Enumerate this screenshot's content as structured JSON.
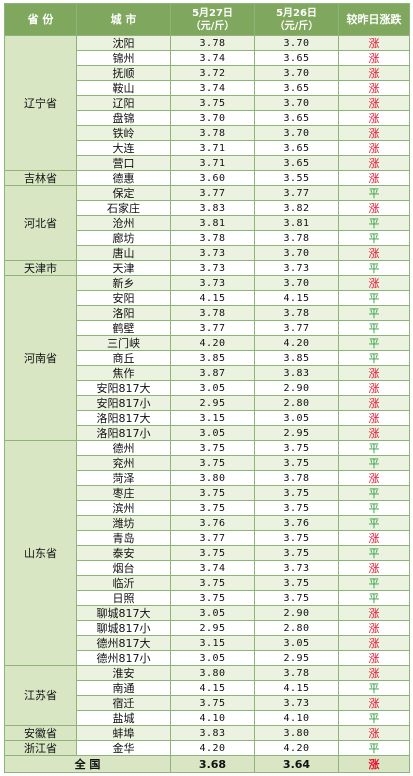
{
  "headers": {
    "province": "省 份",
    "city": "城 市",
    "date1": "5月27日",
    "date1_unit": "（元/斤）",
    "date2": "5月26日",
    "date2_unit": "（元/斤）",
    "trend": "较昨日涨跌"
  },
  "colors": {
    "up": "#e8112d",
    "flat": "#2e9a3a",
    "header": "#7fa85e"
  },
  "groups": [
    {
      "province": "辽宁省",
      "rows": [
        {
          "city": "沈阳",
          "p1": "3.78",
          "p2": "3.70",
          "trend": "涨"
        },
        {
          "city": "锦州",
          "p1": "3.74",
          "p2": "3.65",
          "trend": "涨"
        },
        {
          "city": "抚顺",
          "p1": "3.72",
          "p2": "3.70",
          "trend": "涨"
        },
        {
          "city": "鞍山",
          "p1": "3.74",
          "p2": "3.65",
          "trend": "涨"
        },
        {
          "city": "辽阳",
          "p1": "3.75",
          "p2": "3.70",
          "trend": "涨"
        },
        {
          "city": "盘锦",
          "p1": "3.70",
          "p2": "3.65",
          "trend": "涨"
        },
        {
          "city": "铁岭",
          "p1": "3.78",
          "p2": "3.70",
          "trend": "涨"
        },
        {
          "city": "大连",
          "p1": "3.71",
          "p2": "3.65",
          "trend": "涨"
        },
        {
          "city": "营口",
          "p1": "3.71",
          "p2": "3.65",
          "trend": "涨"
        }
      ]
    },
    {
      "province": "吉林省",
      "rows": [
        {
          "city": "德惠",
          "p1": "3.60",
          "p2": "3.55",
          "trend": "涨"
        }
      ]
    },
    {
      "province": "河北省",
      "rows": [
        {
          "city": "保定",
          "p1": "3.77",
          "p2": "3.77",
          "trend": "平"
        },
        {
          "city": "石家庄",
          "p1": "3.83",
          "p2": "3.82",
          "trend": "涨"
        },
        {
          "city": "沧州",
          "p1": "3.81",
          "p2": "3.81",
          "trend": "平"
        },
        {
          "city": "廊坊",
          "p1": "3.78",
          "p2": "3.78",
          "trend": "平"
        },
        {
          "city": "唐山",
          "p1": "3.73",
          "p2": "3.70",
          "trend": "涨"
        }
      ]
    },
    {
      "province": "天津市",
      "rows": [
        {
          "city": "天津",
          "p1": "3.73",
          "p2": "3.73",
          "trend": "平"
        }
      ]
    },
    {
      "province": "河南省",
      "rows": [
        {
          "city": "新乡",
          "p1": "3.73",
          "p2": "3.70",
          "trend": "涨"
        },
        {
          "city": "安阳",
          "p1": "4.15",
          "p2": "4.15",
          "trend": "平"
        },
        {
          "city": "洛阳",
          "p1": "3.78",
          "p2": "3.78",
          "trend": "平"
        },
        {
          "city": "鹤壁",
          "p1": "3.77",
          "p2": "3.77",
          "trend": "平"
        },
        {
          "city": "三门峡",
          "p1": "4.20",
          "p2": "4.20",
          "trend": "平"
        },
        {
          "city": "商丘",
          "p1": "3.85",
          "p2": "3.85",
          "trend": "平"
        },
        {
          "city": "焦作",
          "p1": "3.87",
          "p2": "3.83",
          "trend": "涨"
        },
        {
          "city": "安阳817大",
          "p1": "3.05",
          "p2": "2.90",
          "trend": "涨"
        },
        {
          "city": "安阳817小",
          "p1": "2.95",
          "p2": "2.80",
          "trend": "涨"
        },
        {
          "city": "洛阳817大",
          "p1": "3.15",
          "p2": "3.05",
          "trend": "涨"
        },
        {
          "city": "洛阳817小",
          "p1": "3.05",
          "p2": "2.95",
          "trend": "涨"
        }
      ]
    },
    {
      "province": "山东省",
      "rows": [
        {
          "city": "德州",
          "p1": "3.75",
          "p2": "3.75",
          "trend": "平"
        },
        {
          "city": "兖州",
          "p1": "3.75",
          "p2": "3.75",
          "trend": "平"
        },
        {
          "city": "菏泽",
          "p1": "3.80",
          "p2": "3.78",
          "trend": "涨"
        },
        {
          "city": "枣庄",
          "p1": "3.75",
          "p2": "3.75",
          "trend": "平"
        },
        {
          "city": "滨州",
          "p1": "3.75",
          "p2": "3.75",
          "trend": "平"
        },
        {
          "city": "潍坊",
          "p1": "3.76",
          "p2": "3.76",
          "trend": "平"
        },
        {
          "city": "青岛",
          "p1": "3.77",
          "p2": "3.75",
          "trend": "涨"
        },
        {
          "city": "泰安",
          "p1": "3.75",
          "p2": "3.75",
          "trend": "平"
        },
        {
          "city": "烟台",
          "p1": "3.74",
          "p2": "3.73",
          "trend": "涨"
        },
        {
          "city": "临沂",
          "p1": "3.75",
          "p2": "3.75",
          "trend": "平"
        },
        {
          "city": "日照",
          "p1": "3.75",
          "p2": "3.75",
          "trend": "平"
        },
        {
          "city": "聊城817大",
          "p1": "3.05",
          "p2": "2.90",
          "trend": "涨"
        },
        {
          "city": "聊城817小",
          "p1": "2.95",
          "p2": "2.80",
          "trend": "涨"
        },
        {
          "city": "德州817大",
          "p1": "3.15",
          "p2": "3.05",
          "trend": "涨"
        },
        {
          "city": "德州817小",
          "p1": "3.05",
          "p2": "2.95",
          "trend": "涨"
        }
      ]
    },
    {
      "province": "江苏省",
      "rows": [
        {
          "city": "淮安",
          "p1": "3.80",
          "p2": "3.78",
          "trend": "涨"
        },
        {
          "city": "南通",
          "p1": "4.15",
          "p2": "4.15",
          "trend": "平"
        },
        {
          "city": "宿迁",
          "p1": "3.75",
          "p2": "3.73",
          "trend": "涨"
        },
        {
          "city": "盐城",
          "p1": "4.10",
          "p2": "4.10",
          "trend": "平"
        }
      ]
    },
    {
      "province": "安徽省",
      "rows": [
        {
          "city": "蚌埠",
          "p1": "3.83",
          "p2": "3.80",
          "trend": "涨"
        }
      ]
    },
    {
      "province": "浙江省",
      "rows": [
        {
          "city": "金华",
          "p1": "4.20",
          "p2": "4.20",
          "trend": "平"
        }
      ]
    }
  ],
  "total": {
    "label": "全 国",
    "p1": "3.68",
    "p2": "3.64",
    "trend": "涨"
  }
}
